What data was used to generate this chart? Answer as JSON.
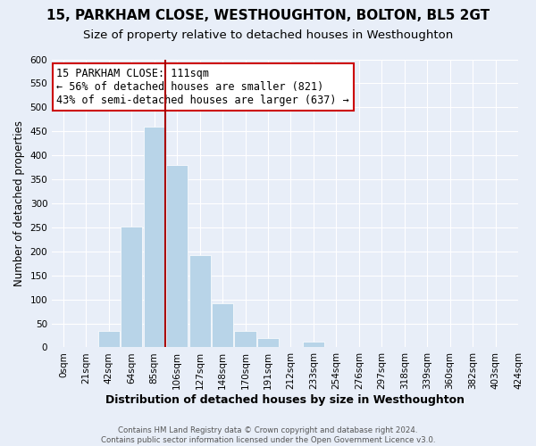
{
  "title": "15, PARKHAM CLOSE, WESTHOUGHTON, BOLTON, BL5 2GT",
  "subtitle": "Size of property relative to detached houses in Westhoughton",
  "xlabel": "Distribution of detached houses by size in Westhoughton",
  "ylabel": "Number of detached properties",
  "footer_line1": "Contains HM Land Registry data © Crown copyright and database right 2024.",
  "footer_line2": "Contains public sector information licensed under the Open Government Licence v3.0.",
  "tick_labels": [
    "0sqm",
    "21sqm",
    "42sqm",
    "64sqm",
    "85sqm",
    "106sqm",
    "127sqm",
    "148sqm",
    "170sqm",
    "191sqm",
    "212sqm",
    "233sqm",
    "254sqm",
    "276sqm",
    "297sqm",
    "318sqm",
    "339sqm",
    "360sqm",
    "382sqm",
    "403sqm",
    "424sqm"
  ],
  "bar_heights": [
    0,
    0,
    35,
    252,
    460,
    380,
    192,
    92,
    35,
    20,
    0,
    12,
    0,
    0,
    0,
    0,
    0,
    0,
    0,
    0
  ],
  "bar_color": "#b8d4e8",
  "bar_edge_color": "#ffffff",
  "property_bar_index": 5,
  "property_line_color": "#aa0000",
  "annotation_title": "15 PARKHAM CLOSE: 111sqm",
  "annotation_line1": "← 56% of detached houses are smaller (821)",
  "annotation_line2": "43% of semi-detached houses are larger (637) →",
  "annotation_box_color": "#ffffff",
  "annotation_box_edge_color": "#cc0000",
  "ylim": [
    0,
    600
  ],
  "yticks": [
    0,
    50,
    100,
    150,
    200,
    250,
    300,
    350,
    400,
    450,
    500,
    550,
    600
  ],
  "bg_color": "#e8eef8",
  "axes_bg_color": "#e8eef8",
  "title_fontsize": 11,
  "subtitle_fontsize": 9.5,
  "axis_label_fontsize": 9,
  "tick_fontsize": 7.5,
  "ylabel_fontsize": 8.5
}
